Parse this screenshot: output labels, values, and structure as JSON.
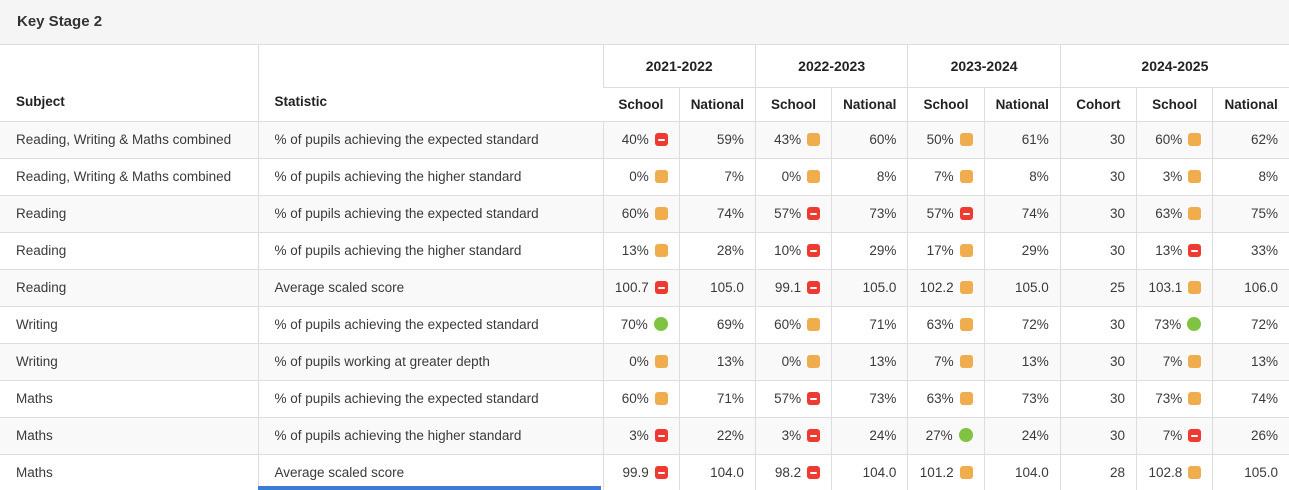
{
  "header": {
    "title": "Key Stage 2"
  },
  "colors": {
    "red": "#ee3a30",
    "orange": "#f0ad4e",
    "green": "#80c342",
    "scrollbar_blue": "#3b7cd5"
  },
  "table": {
    "subject_header": "Subject",
    "statistic_header": "Statistic",
    "year_groups": [
      {
        "label": "2021-2022",
        "cols": [
          "School",
          "National"
        ]
      },
      {
        "label": "2022-2023",
        "cols": [
          "School",
          "National"
        ]
      },
      {
        "label": "2023-2024",
        "cols": [
          "School",
          "National"
        ]
      },
      {
        "label": "2024-2025",
        "cols": [
          "Cohort",
          "School",
          "National"
        ]
      }
    ],
    "rows": [
      {
        "subject": "Reading, Writing & Maths combined",
        "statistic": "% of pupils achieving the expected standard",
        "cells": [
          {
            "text": "40%",
            "icon": "red-minus"
          },
          {
            "text": "59%"
          },
          {
            "text": "43%",
            "icon": "orange-square"
          },
          {
            "text": "60%"
          },
          {
            "text": "50%",
            "icon": "orange-square"
          },
          {
            "text": "61%"
          },
          {
            "text": "30"
          },
          {
            "text": "60%",
            "icon": "orange-square"
          },
          {
            "text": "62%"
          }
        ]
      },
      {
        "subject": "Reading, Writing & Maths combined",
        "statistic": "% of pupils achieving the higher standard",
        "cells": [
          {
            "text": "0%",
            "icon": "orange-square"
          },
          {
            "text": "7%"
          },
          {
            "text": "0%",
            "icon": "orange-square"
          },
          {
            "text": "8%"
          },
          {
            "text": "7%",
            "icon": "orange-square"
          },
          {
            "text": "8%"
          },
          {
            "text": "30"
          },
          {
            "text": "3%",
            "icon": "orange-square"
          },
          {
            "text": "8%"
          }
        ]
      },
      {
        "subject": "Reading",
        "statistic": "% of pupils achieving the expected standard",
        "cells": [
          {
            "text": "60%",
            "icon": "orange-square"
          },
          {
            "text": "74%"
          },
          {
            "text": "57%",
            "icon": "red-minus"
          },
          {
            "text": "73%"
          },
          {
            "text": "57%",
            "icon": "red-minus"
          },
          {
            "text": "74%"
          },
          {
            "text": "30"
          },
          {
            "text": "63%",
            "icon": "orange-square"
          },
          {
            "text": "75%"
          }
        ]
      },
      {
        "subject": "Reading",
        "statistic": "% of pupils achieving the higher standard",
        "cells": [
          {
            "text": "13%",
            "icon": "orange-square"
          },
          {
            "text": "28%"
          },
          {
            "text": "10%",
            "icon": "red-minus"
          },
          {
            "text": "29%"
          },
          {
            "text": "17%",
            "icon": "orange-square"
          },
          {
            "text": "29%"
          },
          {
            "text": "30"
          },
          {
            "text": "13%",
            "icon": "red-minus"
          },
          {
            "text": "33%"
          }
        ]
      },
      {
        "subject": "Reading",
        "statistic": "Average scaled score",
        "cells": [
          {
            "text": "100.7",
            "icon": "red-minus"
          },
          {
            "text": "105.0"
          },
          {
            "text": "99.1",
            "icon": "red-minus"
          },
          {
            "text": "105.0"
          },
          {
            "text": "102.2",
            "icon": "orange-square"
          },
          {
            "text": "105.0"
          },
          {
            "text": "25"
          },
          {
            "text": "103.1",
            "icon": "orange-square"
          },
          {
            "text": "106.0"
          }
        ]
      },
      {
        "subject": "Writing",
        "statistic": "% of pupils achieving the expected standard",
        "cells": [
          {
            "text": "70%",
            "icon": "green-circle"
          },
          {
            "text": "69%"
          },
          {
            "text": "60%",
            "icon": "orange-square"
          },
          {
            "text": "71%"
          },
          {
            "text": "63%",
            "icon": "orange-square"
          },
          {
            "text": "72%"
          },
          {
            "text": "30"
          },
          {
            "text": "73%",
            "icon": "green-circle"
          },
          {
            "text": "72%"
          }
        ]
      },
      {
        "subject": "Writing",
        "statistic": "% of pupils working at greater depth",
        "cells": [
          {
            "text": "0%",
            "icon": "orange-square"
          },
          {
            "text": "13%"
          },
          {
            "text": "0%",
            "icon": "orange-square"
          },
          {
            "text": "13%"
          },
          {
            "text": "7%",
            "icon": "orange-square"
          },
          {
            "text": "13%"
          },
          {
            "text": "30"
          },
          {
            "text": "7%",
            "icon": "orange-square"
          },
          {
            "text": "13%"
          }
        ]
      },
      {
        "subject": "Maths",
        "statistic": "% of pupils achieving the expected standard",
        "cells": [
          {
            "text": "60%",
            "icon": "orange-square"
          },
          {
            "text": "71%"
          },
          {
            "text": "57%",
            "icon": "red-minus"
          },
          {
            "text": "73%"
          },
          {
            "text": "63%",
            "icon": "orange-square"
          },
          {
            "text": "73%"
          },
          {
            "text": "30"
          },
          {
            "text": "73%",
            "icon": "orange-square"
          },
          {
            "text": "74%"
          }
        ]
      },
      {
        "subject": "Maths",
        "statistic": "% of pupils achieving the higher standard",
        "cells": [
          {
            "text": "3%",
            "icon": "red-minus"
          },
          {
            "text": "22%"
          },
          {
            "text": "3%",
            "icon": "red-minus"
          },
          {
            "text": "24%"
          },
          {
            "text": "27%",
            "icon": "green-circle"
          },
          {
            "text": "24%"
          },
          {
            "text": "30"
          },
          {
            "text": "7%",
            "icon": "red-minus"
          },
          {
            "text": "26%"
          }
        ]
      },
      {
        "subject": "Maths",
        "statistic": "Average scaled score",
        "cells": [
          {
            "text": "99.9",
            "icon": "red-minus"
          },
          {
            "text": "104.0"
          },
          {
            "text": "98.2",
            "icon": "red-minus"
          },
          {
            "text": "104.0"
          },
          {
            "text": "101.2",
            "icon": "orange-square"
          },
          {
            "text": "104.0"
          },
          {
            "text": "28"
          },
          {
            "text": "102.8",
            "icon": "orange-square"
          },
          {
            "text": "105.0"
          }
        ]
      }
    ]
  }
}
